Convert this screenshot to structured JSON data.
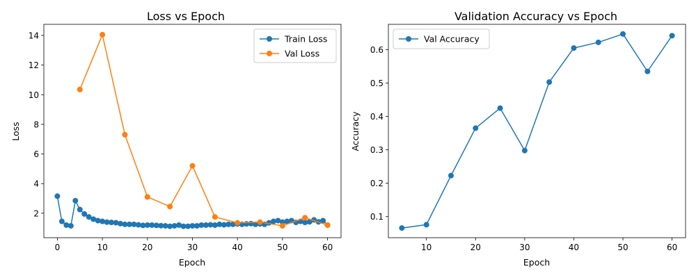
{
  "colors": {
    "blue": "#1f77b4",
    "orange": "#ff7f0e"
  },
  "chart_data": [
    {
      "type": "line",
      "title": "Loss vs Epoch",
      "xlabel": "Epoch",
      "ylabel": "Loss",
      "xlim": [
        -3,
        63
      ],
      "ylim": [
        0.35,
        14.75
      ],
      "xticks": [
        "0",
        "10",
        "20",
        "30",
        "40",
        "50",
        "60"
      ],
      "yticks": [
        "2",
        "4",
        "6",
        "8",
        "10",
        "12",
        "14"
      ],
      "grid": false,
      "legend_position": "top-right",
      "series": [
        {
          "name": "Train Loss",
          "color": "#1f77b4",
          "x": [
            0,
            1,
            2,
            3,
            4,
            5,
            6,
            7,
            8,
            9,
            10,
            11,
            12,
            13,
            14,
            15,
            16,
            17,
            18,
            19,
            20,
            21,
            22,
            23,
            24,
            25,
            26,
            27,
            28,
            29,
            30,
            31,
            32,
            33,
            34,
            35,
            36,
            37,
            38,
            39,
            40,
            41,
            42,
            43,
            44,
            45,
            46,
            47,
            48,
            49,
            50,
            51,
            52,
            53,
            54,
            55,
            56,
            57,
            58,
            59,
            60
          ],
          "y": [
            3.15,
            1.45,
            1.2,
            1.15,
            2.85,
            2.25,
            1.95,
            1.75,
            1.6,
            1.5,
            1.45,
            1.4,
            1.38,
            1.36,
            1.3,
            1.25,
            1.25,
            1.25,
            1.22,
            1.18,
            1.2,
            1.2,
            1.18,
            1.16,
            1.15,
            1.12,
            1.15,
            1.2,
            1.12,
            1.12,
            1.15,
            1.15,
            1.2,
            1.2,
            1.22,
            1.2,
            1.25,
            1.22,
            1.25,
            1.25,
            1.28,
            1.25,
            1.28,
            1.3,
            1.25,
            1.28,
            1.25,
            1.35,
            1.45,
            1.5,
            1.4,
            1.45,
            1.5,
            1.38,
            1.45,
            1.38,
            1.42,
            1.55,
            1.42,
            1.5,
            1.2
          ]
        },
        {
          "name": "Val Loss",
          "color": "#ff7f0e",
          "x": [
            5,
            10,
            15,
            20,
            25,
            30,
            35,
            40,
            45,
            50,
            55,
            60
          ],
          "y": [
            10.35,
            14.05,
            7.3,
            3.1,
            2.45,
            5.2,
            1.75,
            1.35,
            1.4,
            1.15,
            1.7,
            1.2
          ]
        }
      ]
    },
    {
      "type": "line",
      "title": "Validation Accuracy vs Epoch",
      "xlabel": "Epoch",
      "ylabel": "Accuracy",
      "xlim": [
        2.25,
        62.75
      ],
      "ylim": [
        0.037,
        0.676
      ],
      "xticks": [
        "10",
        "20",
        "30",
        "40",
        "50",
        "60"
      ],
      "yticks": [
        "0.1",
        "0.2",
        "0.3",
        "0.4",
        "0.5",
        "0.6"
      ],
      "grid": false,
      "legend_position": "top-left",
      "series": [
        {
          "name": "Val Accuracy",
          "color": "#1f77b4",
          "x": [
            5,
            10,
            15,
            20,
            25,
            30,
            35,
            40,
            45,
            50,
            55,
            60
          ],
          "y": [
            0.066,
            0.076,
            0.223,
            0.365,
            0.425,
            0.298,
            0.503,
            0.605,
            0.622,
            0.647,
            0.535,
            0.642
          ]
        }
      ]
    }
  ]
}
